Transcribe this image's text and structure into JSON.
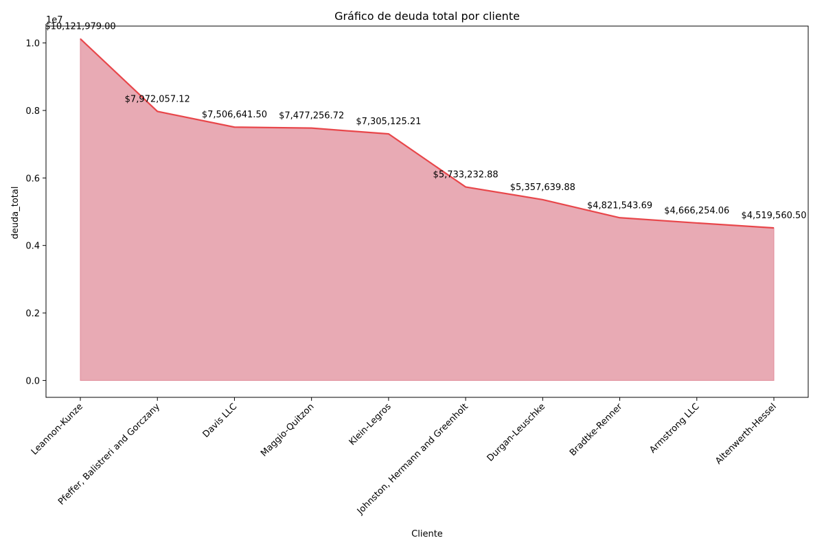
{
  "chart_data": {
    "type": "area",
    "title": "Gráfico de deuda total por cliente",
    "xlabel": "Cliente",
    "ylabel": "deuda_total",
    "y_offset_label": "1e7",
    "ylim": [
      -500000,
      10500000
    ],
    "yticks": [
      0,
      2000000,
      4000000,
      6000000,
      8000000,
      10000000
    ],
    "ytick_labels": [
      "0.0",
      "0.2",
      "0.4",
      "0.6",
      "0.8",
      "1.0"
    ],
    "categories": [
      "Leannon-Kunze",
      "Pfeffer, Balistreri and Gorczany",
      "Davis LLC",
      "Maggio-Quitzon",
      "Klein-Legros",
      "Johnston, Hermann and Greenholt",
      "Durgan-Leuschke",
      "Bradtke-Renner",
      "Armstrong LLC",
      "Altenwerth-Hessel"
    ],
    "values": [
      10121979.0,
      7972057.12,
      7506641.5,
      7477256.72,
      7305125.21,
      5733232.88,
      5357639.88,
      4821543.69,
      4666254.06,
      4519560.5
    ],
    "data_labels": [
      "$10,121,979.00",
      "$7,972,057.12",
      "$7,506,641.50",
      "$7,477,256.72",
      "$7,305,125.21",
      "$5,733,232.88",
      "$5,357,639.88",
      "$4,821,543.69",
      "$4,666,254.06",
      "$4,519,560.50"
    ],
    "line_color": "#e8464a",
    "fill_color": "#e8aab4",
    "grid": false,
    "legend": "none"
  }
}
